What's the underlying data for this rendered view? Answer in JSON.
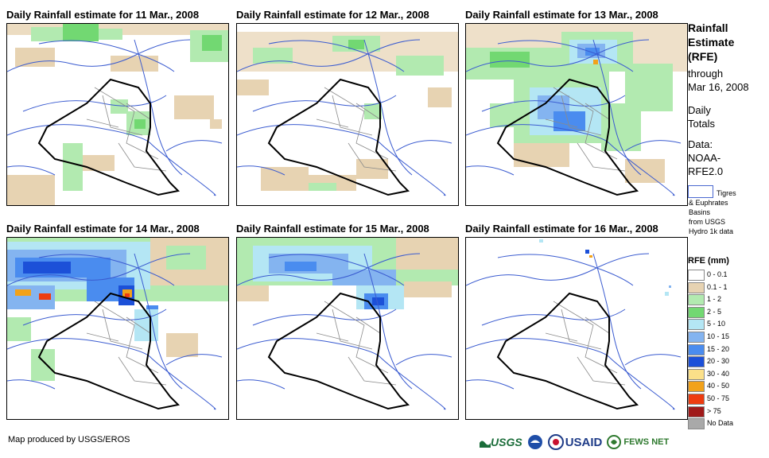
{
  "panels": [
    {
      "title": "Daily Rainfall estimate for 11 Mar., 2008"
    },
    {
      "title": "Daily Rainfall estimate for 12 Mar., 2008"
    },
    {
      "title": "Daily Rainfall estimate for 13 Mar., 2008"
    },
    {
      "title": "Daily Rainfall estimate for 14 Mar., 2008"
    },
    {
      "title": "Daily Rainfall estimate for 15 Mar., 2008"
    },
    {
      "title": "Daily Rainfall estimate for 16 Mar., 2008"
    }
  ],
  "sidebar": {
    "title_line1": "Rainfall",
    "title_line2": "Estimate",
    "title_line3": "(RFE)",
    "through_line1": "through",
    "through_line2": "Mar 16, 2008",
    "daily_line1": "Daily",
    "daily_line2": "Totals",
    "data_line1": "Data:",
    "data_line2": "NOAA-",
    "data_line3": "RFE2.0",
    "basin_line1": "Tigres",
    "basin_line2": "& Euphrates",
    "basin_line3": "Basins",
    "basin_line4": "from USGS",
    "basin_line5": "Hydro 1k data"
  },
  "legend": {
    "title": "RFE (mm)",
    "items": [
      {
        "label": "0 - 0.1",
        "color": "#ffffff"
      },
      {
        "label": "0.1 - 1",
        "color": "#e7d3b2"
      },
      {
        "label": "1 - 2",
        "color": "#b2eab0"
      },
      {
        "label": "2 - 5",
        "color": "#72d872"
      },
      {
        "label": "5 - 10",
        "color": "#b4e6f4"
      },
      {
        "label": "10 - 15",
        "color": "#84b4f0"
      },
      {
        "label": "15 - 20",
        "color": "#4a8cef"
      },
      {
        "label": "20 - 30",
        "color": "#1c50d8"
      },
      {
        "label": "30 - 40",
        "color": "#fbe089"
      },
      {
        "label": "40 - 50",
        "color": "#f2a21a"
      },
      {
        "label": "50 - 75",
        "color": "#ee3c10"
      },
      {
        "label": "> 75",
        "color": "#a01a1a"
      },
      {
        "label": "No Data",
        "color": "#a9a9a9"
      }
    ]
  },
  "footer": {
    "credit": "Map produced by USGS/EROS",
    "logo_usgs": "USGS",
    "logo_usaid": "USAID",
    "logo_fews": "FEWS NET"
  },
  "colors": {
    "river": "#3a5bd0",
    "border": "#000000",
    "province": "#8a8a8a"
  }
}
